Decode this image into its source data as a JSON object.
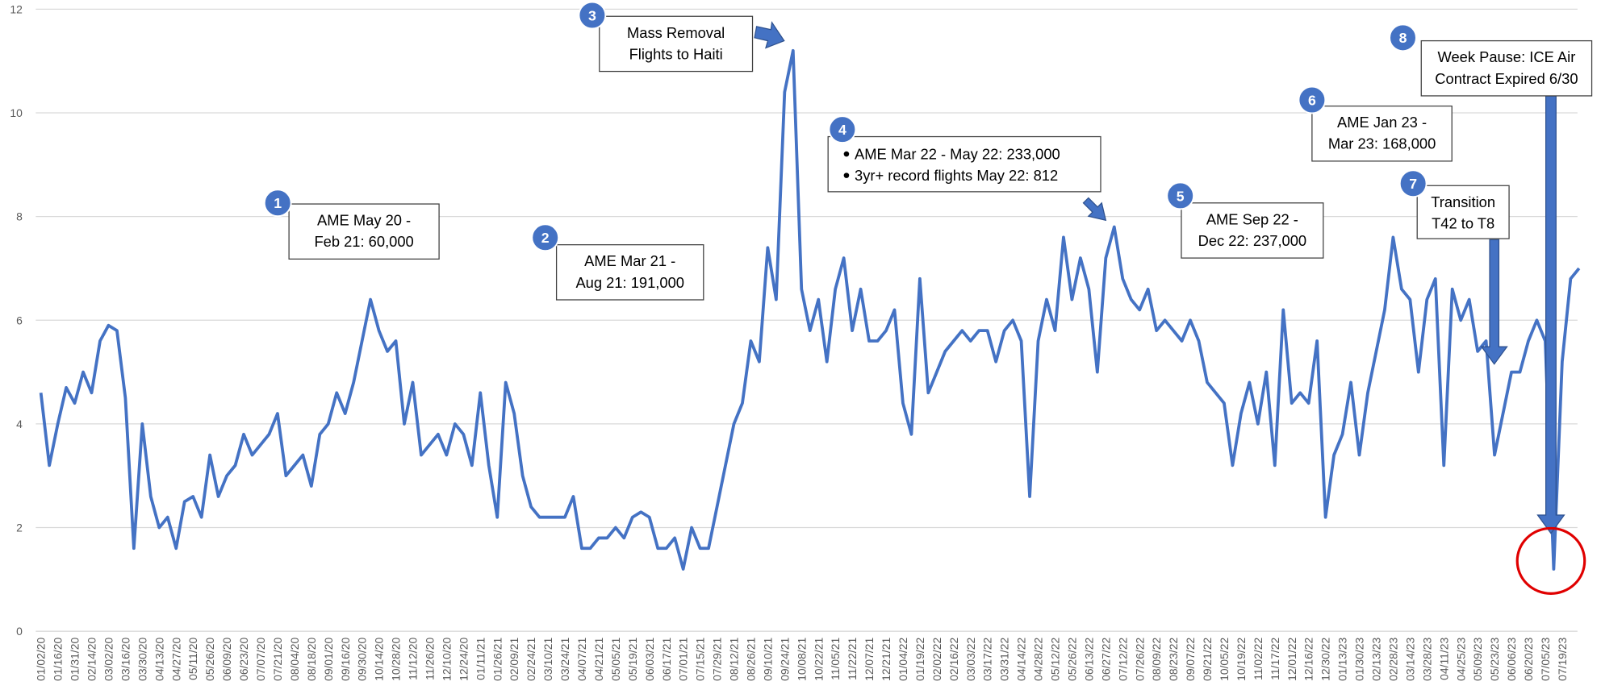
{
  "chart_data": {
    "type": "line",
    "categories": [
      "01/02/20",
      null,
      "01/16/20",
      null,
      "01/31/20",
      null,
      "02/14/20",
      null,
      "03/02/20",
      null,
      "03/16/20",
      null,
      "03/30/20",
      null,
      "04/13/20",
      null,
      "04/27/20",
      null,
      "05/11/20",
      null,
      "05/26/20",
      null,
      "06/09/20",
      null,
      "06/23/20",
      null,
      "07/07/20",
      null,
      "07/21/20",
      null,
      "08/04/20",
      null,
      "08/18/20",
      null,
      "09/01/20",
      null,
      "09/16/20",
      null,
      "09/30/20",
      null,
      "10/14/20",
      null,
      "10/28/20",
      null,
      "11/12/20",
      null,
      "11/26/20",
      null,
      "12/10/20",
      null,
      "12/24/20",
      null,
      "01/11/21",
      null,
      "01/26/21",
      null,
      "02/09/21",
      null,
      "02/24/21",
      null,
      "03/10/21",
      null,
      "03/24/21",
      null,
      "04/07/21",
      null,
      "04/21/21",
      null,
      "05/05/21",
      null,
      "05/19/21",
      null,
      "06/03/21",
      null,
      "06/17/21",
      null,
      "07/01/21",
      null,
      "07/15/21",
      null,
      "07/29/21",
      null,
      "08/12/21",
      null,
      "08/26/21",
      null,
      "09/10/21",
      null,
      "09/24/21",
      null,
      "10/08/21",
      null,
      "10/22/21",
      null,
      "11/05/21",
      null,
      "11/22/21",
      null,
      "12/07/21",
      null,
      "12/21/21",
      null,
      "01/04/22",
      null,
      "01/19/22",
      null,
      "02/02/22",
      null,
      "02/16/22",
      null,
      "03/03/22",
      null,
      "03/17/22",
      null,
      "03/31/22",
      null,
      "04/14/22",
      null,
      "04/28/22",
      null,
      "05/12/22",
      null,
      "05/26/22",
      null,
      "06/13/22",
      null,
      "06/27/22",
      null,
      "07/12/22",
      null,
      "07/26/22",
      null,
      "08/09/22",
      null,
      "08/23/22",
      null,
      "09/07/22",
      null,
      "09/21/22",
      null,
      "10/05/22",
      null,
      "10/19/22",
      null,
      "11/02/22",
      null,
      "11/17/22",
      null,
      "12/01/22",
      null,
      "12/16/22",
      null,
      "12/30/22",
      null,
      "01/13/23",
      null,
      "01/30/23",
      null,
      "02/13/23",
      null,
      "02/28/23",
      null,
      "03/14/23",
      null,
      "03/28/23",
      null,
      "04/11/23",
      null,
      "04/25/23",
      null,
      "05/09/23",
      null,
      "05/23/23",
      null,
      "06/06/23",
      null,
      "06/20/23",
      null,
      "07/05/23",
      null,
      "07/19/23",
      null,
      null
    ],
    "values": [
      4.6,
      3.2,
      4.0,
      4.7,
      4.4,
      5.0,
      4.6,
      5.6,
      5.9,
      5.8,
      4.5,
      1.6,
      4.0,
      2.6,
      2.0,
      2.2,
      1.6,
      2.5,
      2.6,
      2.2,
      3.4,
      2.6,
      3.0,
      3.2,
      3.8,
      3.4,
      3.6,
      3.8,
      4.2,
      3.0,
      3.2,
      3.4,
      2.8,
      3.8,
      4.0,
      4.6,
      4.2,
      4.8,
      5.6,
      6.4,
      5.8,
      5.4,
      5.6,
      4.0,
      4.8,
      3.4,
      3.6,
      3.8,
      3.4,
      4.0,
      3.8,
      3.2,
      4.6,
      3.2,
      2.2,
      4.8,
      4.2,
      3.0,
      2.4,
      2.2,
      2.2,
      2.2,
      2.2,
      2.6,
      1.6,
      1.6,
      1.8,
      1.8,
      2.0,
      1.8,
      2.2,
      2.3,
      2.2,
      1.6,
      1.6,
      1.8,
      1.2,
      2.0,
      1.6,
      1.6,
      2.4,
      3.2,
      4.0,
      4.4,
      5.6,
      5.2,
      7.4,
      6.4,
      10.4,
      11.2,
      6.6,
      5.8,
      6.4,
      5.2,
      6.6,
      7.2,
      5.8,
      6.6,
      5.6,
      5.6,
      5.8,
      6.2,
      4.4,
      3.8,
      6.8,
      4.6,
      5.0,
      5.4,
      5.6,
      5.8,
      5.6,
      5.8,
      5.8,
      5.2,
      5.8,
      6.0,
      5.6,
      2.6,
      5.6,
      6.4,
      5.8,
      7.6,
      6.4,
      7.2,
      6.6,
      5.0,
      7.2,
      7.8,
      6.8,
      6.4,
      6.2,
      6.6,
      5.8,
      6.0,
      5.8,
      5.6,
      6.0,
      5.6,
      4.8,
      4.6,
      4.4,
      3.2,
      4.2,
      4.8,
      4.0,
      5.0,
      3.2,
      6.2,
      4.4,
      4.6,
      4.4,
      5.6,
      2.2,
      3.4,
      3.8,
      4.8,
      3.4,
      4.6,
      5.4,
      6.2,
      7.6,
      6.6,
      6.4,
      5.0,
      6.4,
      6.8,
      3.2,
      6.6,
      6.0,
      6.4,
      5.4,
      5.6,
      3.4,
      4.2,
      5.0,
      5.0,
      5.6,
      6.0,
      5.6,
      1.2,
      5.2,
      6.8,
      7.0
    ],
    "color": "#4472c4",
    "ylim": [
      0,
      12
    ],
    "yticks": [
      0,
      2,
      4,
      6,
      8,
      10,
      12
    ],
    "grid": true,
    "annotations": [
      {
        "number": 1,
        "lines": [
          "AME May 20 -",
          "Feb 21: 60,000"
        ]
      },
      {
        "number": 2,
        "lines": [
          "AME Mar 21 -",
          "Aug 21: 191,000"
        ]
      },
      {
        "number": 3,
        "lines": [
          "Mass Removal",
          "Flights to Haiti"
        ]
      },
      {
        "number": 4,
        "bullets": [
          "AME Mar 22 - May 22: 233,000",
          "3yr+ record flights May 22: 812"
        ]
      },
      {
        "number": 5,
        "lines": [
          "AME Sep 22 -",
          "Dec 22: 237,000"
        ]
      },
      {
        "number": 6,
        "lines": [
          "AME Jan 23 -",
          "Mar 23: 168,000"
        ]
      },
      {
        "number": 7,
        "lines": [
          "Transition",
          "T42 to T8"
        ]
      },
      {
        "number": 8,
        "lines": [
          "Week Pause: ICE Air",
          "Contract Expired 6/30"
        ]
      }
    ]
  }
}
